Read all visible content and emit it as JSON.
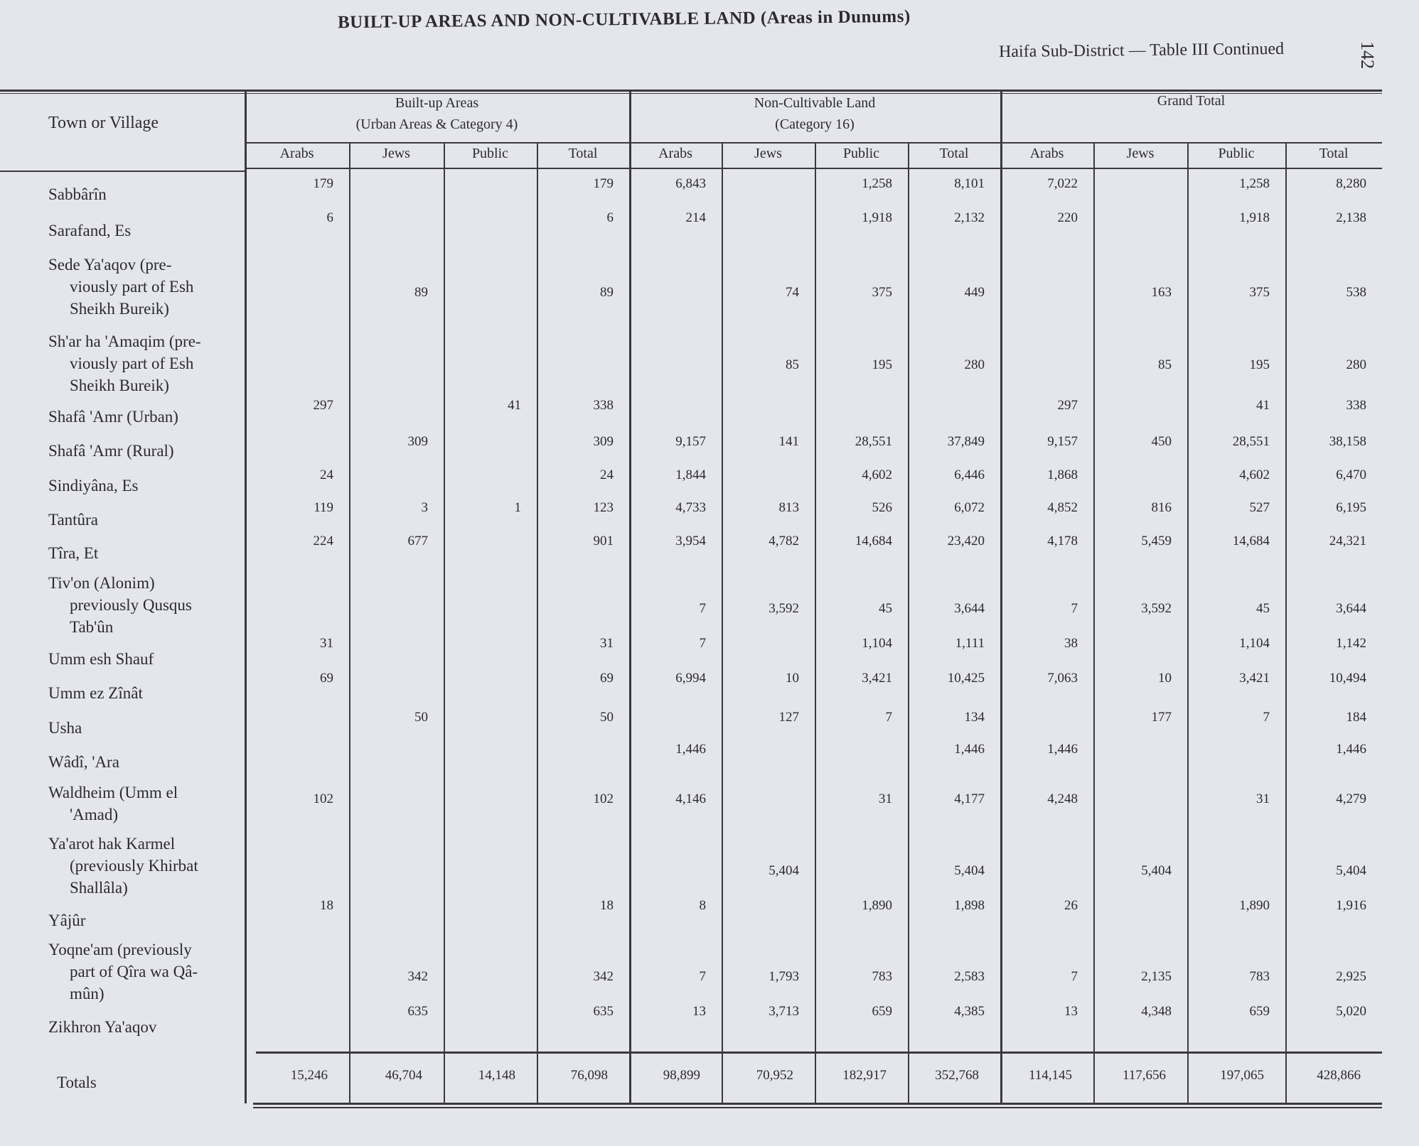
{
  "title": "BUILT-UP AREAS AND NON-CULTIVABLE LAND (Areas in Dunums)",
  "subtitle": "Haifa Sub-District — Table III Continued",
  "page_number": "142",
  "header": {
    "town_col": "Town or Village",
    "groups": [
      {
        "line1": "Built-up Areas",
        "line2": "(Urban Areas & Category 4)"
      },
      {
        "line1": "Non-Cultivable Land",
        "line2": "(Category 16)"
      },
      {
        "line1": "Grand Total",
        "line2": ""
      }
    ],
    "subcols": [
      "Arabs",
      "Jews",
      "Public",
      "Total",
      "Arabs",
      "Jews",
      "Public",
      "Total",
      "Arabs",
      "Jews",
      "Public",
      "Total"
    ]
  },
  "rows": [
    {
      "label": [
        "Sabbârîn"
      ],
      "values": [
        "179",
        "",
        "",
        "179",
        "6,843",
        "",
        "1,258",
        "8,101",
        "7,022",
        "",
        "1,258",
        "8,280"
      ]
    },
    {
      "label": [
        "Sarafand, Es"
      ],
      "values": [
        "6",
        "",
        "",
        "6",
        "214",
        "",
        "1,918",
        "2,132",
        "220",
        "",
        "1,918",
        "2,138"
      ]
    },
    {
      "label": [
        "Sede Ya'aqov (pre-",
        "viously part of Esh",
        "Sheikh Bureik)"
      ],
      "values": [
        "",
        "89",
        "",
        "89",
        "",
        "74",
        "375",
        "449",
        "",
        "163",
        "375",
        "538"
      ]
    },
    {
      "label": [
        "Sh'ar ha 'Amaqim (pre-",
        "viously part of Esh",
        "Sheikh Bureik)"
      ],
      "values": [
        "",
        "",
        "",
        "",
        "",
        "85",
        "195",
        "280",
        "",
        "85",
        "195",
        "280"
      ]
    },
    {
      "label": [
        "Shafâ 'Amr (Urban)"
      ],
      "values": [
        "297",
        "",
        "41",
        "338",
        "",
        "",
        "",
        "",
        "297",
        "",
        "41",
        "338"
      ]
    },
    {
      "label": [
        "Shafâ 'Amr (Rural)"
      ],
      "values": [
        "",
        "309",
        "",
        "309",
        "9,157",
        "141",
        "28,551",
        "37,849",
        "9,157",
        "450",
        "28,551",
        "38,158"
      ]
    },
    {
      "label": [
        "Sindiyâna, Es"
      ],
      "values": [
        "24",
        "",
        "",
        "24",
        "1,844",
        "",
        "4,602",
        "6,446",
        "1,868",
        "",
        "4,602",
        "6,470"
      ]
    },
    {
      "label": [
        "Tantûra"
      ],
      "values": [
        "119",
        "3",
        "1",
        "123",
        "4,733",
        "813",
        "526",
        "6,072",
        "4,852",
        "816",
        "527",
        "6,195"
      ]
    },
    {
      "label": [
        "Tîra, Et"
      ],
      "values": [
        "224",
        "677",
        "",
        "901",
        "3,954",
        "4,782",
        "14,684",
        "23,420",
        "4,178",
        "5,459",
        "14,684",
        "24,321"
      ]
    },
    {
      "label": [
        "Tiv'on (Alonim)",
        "previously Qusqus",
        "Tab'ûn"
      ],
      "values": [
        "",
        "",
        "",
        "",
        "7",
        "3,592",
        "45",
        "3,644",
        "7",
        "3,592",
        "45",
        "3,644"
      ]
    },
    {
      "label": [
        "Umm esh Shauf"
      ],
      "values": [
        "31",
        "",
        "",
        "31",
        "7",
        "",
        "1,104",
        "1,111",
        "38",
        "",
        "1,104",
        "1,142"
      ]
    },
    {
      "label": [
        "Umm ez Zînât"
      ],
      "values": [
        "69",
        "",
        "",
        "69",
        "6,994",
        "10",
        "3,421",
        "10,425",
        "7,063",
        "10",
        "3,421",
        "10,494"
      ]
    },
    {
      "label": [
        "Usha"
      ],
      "values": [
        "",
        "50",
        "",
        "50",
        "",
        "127",
        "7",
        "134",
        "",
        "177",
        "7",
        "184"
      ]
    },
    {
      "label": [
        "Wâdî, 'Ara"
      ],
      "values": [
        "",
        "",
        "",
        "",
        "1,446",
        "",
        "",
        "1,446",
        "1,446",
        "",
        "",
        "1,446"
      ]
    },
    {
      "label": [
        "Waldheim (Umm el",
        "'Amad)"
      ],
      "values": [
        "102",
        "",
        "",
        "102",
        "4,146",
        "",
        "31",
        "4,177",
        "4,248",
        "",
        "31",
        "4,279"
      ]
    },
    {
      "label": [
        "Ya'arot hak Karmel",
        "(previously Khirbat",
        "Shallâla)"
      ],
      "values": [
        "",
        "",
        "",
        "",
        "",
        "5,404",
        "",
        "5,404",
        "",
        "5,404",
        "",
        "5,404"
      ]
    },
    {
      "label": [
        "Yâjûr"
      ],
      "values": [
        "18",
        "",
        "",
        "18",
        "8",
        "",
        "1,890",
        "1,898",
        "26",
        "",
        "1,890",
        "1,916"
      ]
    },
    {
      "label": [
        "Yoqne'am (previously",
        "part of Qîra wa Qâ-",
        "mûn)"
      ],
      "values": [
        "",
        "342",
        "",
        "342",
        "7",
        "1,793",
        "783",
        "2,583",
        "7",
        "2,135",
        "783",
        "2,925"
      ]
    },
    {
      "label": [
        "Zikhron Ya'aqov"
      ],
      "values": [
        "",
        "635",
        "",
        "635",
        "13",
        "3,713",
        "659",
        "4,385",
        "13",
        "4,348",
        "659",
        "5,020"
      ]
    }
  ],
  "totals": {
    "label": "Totals",
    "values": [
      "15,246",
      "46,704",
      "14,148",
      "76,098",
      "98,899",
      "70,952",
      "182,917",
      "352,768",
      "114,145",
      "117,656",
      "197,065",
      "428,866"
    ]
  }
}
